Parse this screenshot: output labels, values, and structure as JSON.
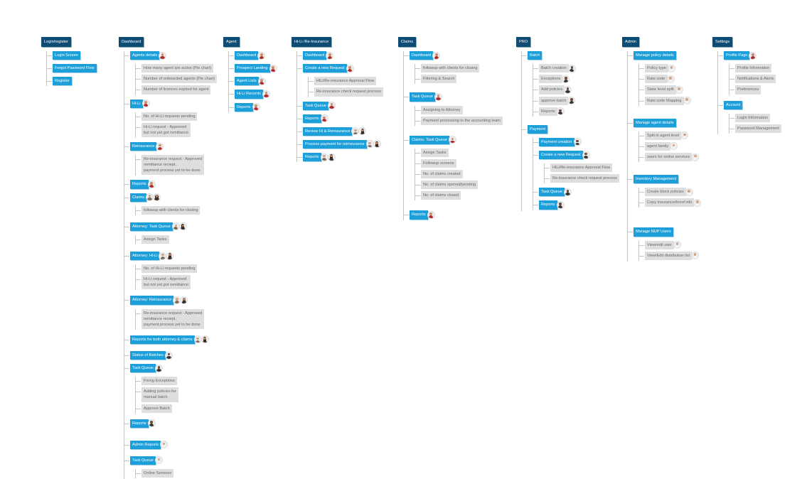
{
  "avatar_colors": {
    "avatar-agent": {
      "skin": "#c98f6e",
      "shirt": "#b0282a",
      "hair": null
    },
    "avatar-attorney": {
      "skin": "#c9a58a",
      "shirt": "#7a6a5a",
      "hair": null
    },
    "avatar-claims": {
      "skin": "#b9876a",
      "shirt": "#3a2a22",
      "hair": "#2a1a12"
    },
    "avatar-pro": {
      "skin": "#6a4a3a",
      "shirt": "#333333",
      "hair": null
    },
    "avatar-admin": {
      "skin": "#d0a486",
      "shirt": "#f4f4f4",
      "hair": null
    }
  },
  "colors": {
    "root": "#0f4c75",
    "section": "#1d9fd9",
    "item": "#dedede",
    "connector": "#c4c4c4"
  },
  "columns": [
    {
      "label": "Login/register",
      "children": [
        {
          "label": "Login Screen",
          "kind": "section"
        },
        {
          "label": "Forgot Password Flow",
          "kind": "section"
        },
        {
          "label": "Register",
          "kind": "section"
        }
      ]
    },
    {
      "label": "Dashboard",
      "children": [
        {
          "label": "Agents details",
          "kind": "section",
          "avatars": [
            "avatar-agent"
          ],
          "children": [
            {
              "label": "How many agent are active (Pie chart)",
              "kind": "item"
            },
            {
              "label": "Number of onboarded agents (Pie chart)",
              "kind": "item"
            },
            {
              "label": "Number of licences expired for agent",
              "kind": "item"
            }
          ]
        },
        {
          "label": "Hi-Li",
          "kind": "section",
          "avatars": [
            "avatar-agent"
          ],
          "children": [
            {
              "label": "No. of Hi-Li requests pending",
              "kind": "item"
            },
            {
              "label": "Hi-Li request - Approved\nbut not yet got remittance",
              "kind": "item"
            }
          ]
        },
        {
          "label": "Reinsurance",
          "kind": "section",
          "avatars": [
            "avatar-agent"
          ],
          "children": [
            {
              "label": "Re-insurance request - Approved\nremittance reciept,\npayment process yet to be done",
              "kind": "item"
            }
          ]
        },
        {
          "label": "Reports",
          "kind": "section",
          "avatars": [
            "avatar-agent"
          ]
        },
        {
          "label": "Claims",
          "kind": "section",
          "avatars": [
            "avatar-attorney",
            "avatar-claims"
          ],
          "children": [
            {
              "label": "followup with clients for closing",
              "kind": "item"
            }
          ]
        },
        {
          "label": "Attorney: Task Queue",
          "kind": "section",
          "avatars": [
            "avatar-attorney",
            "avatar-claims"
          ],
          "children": [
            {
              "label": "Assign Tasks",
              "kind": "item"
            }
          ]
        },
        {
          "label": "Attorney: Hi-Li",
          "kind": "section",
          "avatars": [
            "avatar-attorney",
            "avatar-claims"
          ],
          "children": [
            {
              "label": "No. of Hi-Li requests pending",
              "kind": "item"
            },
            {
              "label": "Hi-Li request - Approved\nbut not yet got remittance",
              "kind": "item"
            }
          ]
        },
        {
          "label": "Attorney: Reinsurance",
          "kind": "section",
          "avatars": [
            "avatar-attorney",
            "avatar-claims"
          ],
          "children": [
            {
              "label": "Re-insurance request - Approved\nremittance reciept,\npayment process yet to be done",
              "kind": "item"
            }
          ]
        },
        {
          "label": "Reports for both attorney & claims",
          "kind": "section",
          "avatars": [
            "avatar-attorney",
            "avatar-claims"
          ]
        },
        {
          "label": "Status of Batches",
          "kind": "section",
          "avatars": [
            "avatar-pro"
          ]
        },
        {
          "label": "Task Queue",
          "kind": "section",
          "avatars": [
            "avatar-pro"
          ],
          "children": [
            {
              "label": "Fixing Exceptions",
              "kind": "item"
            },
            {
              "label": "Adding policies for\nmanual batch",
              "kind": "item"
            },
            {
              "label": "Approve Batch",
              "kind": "item"
            }
          ]
        },
        {
          "label": "Reports",
          "kind": "section",
          "avatars": [
            "avatar-pro"
          ]
        },
        {
          "label": "Admin Reports",
          "kind": "section",
          "avatars": [
            "avatar-admin"
          ]
        },
        {
          "label": "Task Queue",
          "kind": "section",
          "avatars": [
            "avatar-admin"
          ],
          "children": [
            {
              "label": "Online Services",
              "kind": "item"
            }
          ]
        }
      ]
    },
    {
      "label": "Agent",
      "children": [
        {
          "label": "Dashboard",
          "kind": "section",
          "avatars": [
            "avatar-agent"
          ]
        },
        {
          "label": "Prospect Landing",
          "kind": "section",
          "avatars": [
            "avatar-agent"
          ]
        },
        {
          "label": "Agent Lists",
          "kind": "section",
          "avatars": [
            "avatar-agent"
          ]
        },
        {
          "label": "Hi-Li Records",
          "kind": "section",
          "avatars": [
            "avatar-agent"
          ]
        },
        {
          "label": "Reports",
          "kind": "section",
          "avatars": [
            "avatar-agent"
          ]
        }
      ]
    },
    {
      "label": "Hi-Li /Re-Insurance",
      "children": [
        {
          "label": "Dashboard",
          "kind": "section",
          "avatars": [
            "avatar-agent"
          ]
        },
        {
          "label": "Create a new Request",
          "kind": "section",
          "avatars": [
            "avatar-agent"
          ],
          "children": [
            {
              "label": "HiLi/Re-insurance Approval Flow",
              "kind": "item"
            },
            {
              "label": "Re-insurance check request process",
              "kind": "item"
            }
          ]
        },
        {
          "label": "Task Queue",
          "kind": "section",
          "avatars": [
            "avatar-agent"
          ]
        },
        {
          "label": "Reports",
          "kind": "section",
          "avatars": [
            "avatar-agent"
          ]
        },
        {
          "label": "Review Hi & Reinsurance",
          "kind": "section",
          "avatars": [
            "avatar-attorney",
            "avatar-claims"
          ]
        },
        {
          "label": "Process payment for reimsurance",
          "kind": "section",
          "avatars": [
            "avatar-attorney",
            "avatar-claims"
          ]
        },
        {
          "label": "Reports",
          "kind": "section",
          "avatars": [
            "avatar-attorney",
            "avatar-claims"
          ]
        }
      ]
    },
    {
      "label": "Claims",
      "children": [
        {
          "label": "Dashboard",
          "kind": "section",
          "avatars": [
            "avatar-agent"
          ],
          "children": [
            {
              "label": "followup with clients for closing",
              "kind": "item"
            },
            {
              "label": "Filtering & Search",
              "kind": "item"
            }
          ]
        },
        {
          "label": "Task Queue",
          "kind": "section",
          "avatars": [
            "avatar-agent"
          ],
          "children": [
            {
              "label": "Assigning to Attorney",
              "kind": "item"
            },
            {
              "label": "Payment processing to the accounting team",
              "kind": "item"
            }
          ]
        },
        {
          "label": "Claims: Task Queue",
          "kind": "section",
          "avatars": [
            "avatar-agent"
          ],
          "children": [
            {
              "label": "Assign Tasks",
              "kind": "item"
            },
            {
              "label": "Followup screens",
              "kind": "item"
            },
            {
              "label": "No. of claims created",
              "kind": "item"
            },
            {
              "label": "No. of claims opened/pending",
              "kind": "item"
            },
            {
              "label": "No. of claims closed",
              "kind": "item"
            }
          ]
        },
        {
          "label": "Reports",
          "kind": "section",
          "avatars": [
            "avatar-agent"
          ]
        }
      ]
    },
    {
      "label": "PRO",
      "children": [
        {
          "label": "Batch",
          "kind": "section",
          "children": [
            {
              "label": "Batch creation",
              "kind": "item",
              "avatars": [
                "avatar-pro"
              ]
            },
            {
              "label": "Exceptions",
              "kind": "item",
              "avatars": [
                "avatar-pro"
              ]
            },
            {
              "label": "Add policies",
              "kind": "item",
              "avatars": [
                "avatar-pro"
              ]
            },
            {
              "label": "approve batch",
              "kind": "item",
              "avatars": [
                "avatar-pro"
              ]
            },
            {
              "label": "Reports",
              "kind": "item",
              "avatars": [
                "avatar-pro"
              ]
            }
          ]
        },
        {
          "label": "Payment",
          "kind": "section",
          "children": [
            {
              "label": "Payment creation",
              "kind": "section",
              "avatars": [
                "avatar-pro"
              ]
            },
            {
              "label": "Create a new Request",
              "kind": "section",
              "avatars": [
                "avatar-pro"
              ],
              "children": [
                {
                  "label": "HiLi/Re-insurance Approval Flow",
                  "kind": "item"
                },
                {
                  "label": "Re-insurance check request process",
                  "kind": "item"
                }
              ]
            },
            {
              "label": "Task Queue",
              "kind": "section",
              "avatars": [
                "avatar-pro"
              ]
            },
            {
              "label": "Reports",
              "kind": "section",
              "avatars": [
                "avatar-pro"
              ]
            }
          ]
        }
      ]
    },
    {
      "label": "Admin",
      "children": [
        {
          "label": "Manage policy details",
          "kind": "section",
          "children": [
            {
              "label": "Policy type",
              "kind": "item",
              "avatars": [
                "avatar-admin"
              ]
            },
            {
              "label": "Rate code",
              "kind": "item",
              "avatars": [
                "avatar-admin"
              ]
            },
            {
              "label": "State level split",
              "kind": "item",
              "avatars": [
                "avatar-admin"
              ]
            },
            {
              "label": "Rate code Mapping",
              "kind": "item",
              "avatars": [
                "avatar-admin"
              ]
            }
          ]
        },
        {
          "label": "Manage agent details",
          "kind": "section",
          "children": [
            {
              "label": "Split in agent level",
              "kind": "item",
              "avatars": [
                "avatar-admin"
              ]
            },
            {
              "label": "agent family",
              "kind": "item",
              "avatars": [
                "avatar-admin"
              ]
            },
            {
              "label": "users for online services",
              "kind": "item",
              "avatars": [
                "avatar-admin"
              ]
            }
          ]
        },
        {
          "label": "Inventory Management",
          "kind": "section",
          "children": [
            {
              "label": "Create block policies",
              "kind": "item",
              "avatars": [
                "avatar-admin"
              ]
            },
            {
              "label": "Copy insurance/bond info",
              "kind": "item",
              "avatars": [
                "avatar-admin"
              ]
            }
          ]
        },
        {
          "label": "Manage NUP Users",
          "kind": "section",
          "children": [
            {
              "label": "View/edit user",
              "kind": "item",
              "avatars": [
                "avatar-admin"
              ]
            },
            {
              "label": "View/Edit distribution list",
              "kind": "item",
              "avatars": [
                "avatar-admin"
              ]
            }
          ]
        }
      ]
    },
    {
      "label": "Settings",
      "children": [
        {
          "label": "Profile Page",
          "kind": "section",
          "avatars": [
            "avatar-agent"
          ],
          "children": [
            {
              "label": "Profile Information",
              "kind": "item"
            },
            {
              "label": "Notifications & Alerts",
              "kind": "item"
            },
            {
              "label": "Preferences",
              "kind": "item"
            }
          ]
        },
        {
          "label": "Account",
          "kind": "section",
          "children": [
            {
              "label": "Login Information",
              "kind": "item"
            },
            {
              "label": "Password Management",
              "kind": "item"
            }
          ]
        }
      ]
    }
  ]
}
